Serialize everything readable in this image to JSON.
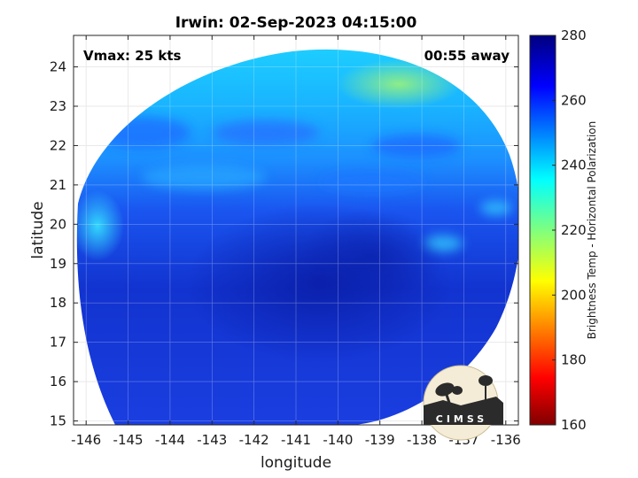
{
  "title": "Irwin: 02-Sep-2023 04:15:00",
  "annotations": {
    "vmax": "Vmax: 25 kts",
    "time_away": "00:55 away"
  },
  "axes": {
    "xlabel": "longitude",
    "ylabel": "latitude",
    "xlim": [
      -146.3,
      -135.7
    ],
    "ylim": [
      14.9,
      24.8
    ],
    "xticks": [
      -146,
      -145,
      -144,
      -143,
      -142,
      -141,
      -140,
      -139,
      -138,
      -137,
      -136
    ],
    "yticks": [
      15,
      16,
      17,
      18,
      19,
      20,
      21,
      22,
      23,
      24
    ],
    "grid": true
  },
  "colorbar": {
    "label": "Brightness Temp - Horizontal Polarization",
    "range": [
      160,
      280
    ],
    "ticks": [
      160,
      180,
      200,
      220,
      240,
      260,
      280
    ],
    "colormap": "jet"
  },
  "logo": {
    "text": "CIMSS"
  }
}
